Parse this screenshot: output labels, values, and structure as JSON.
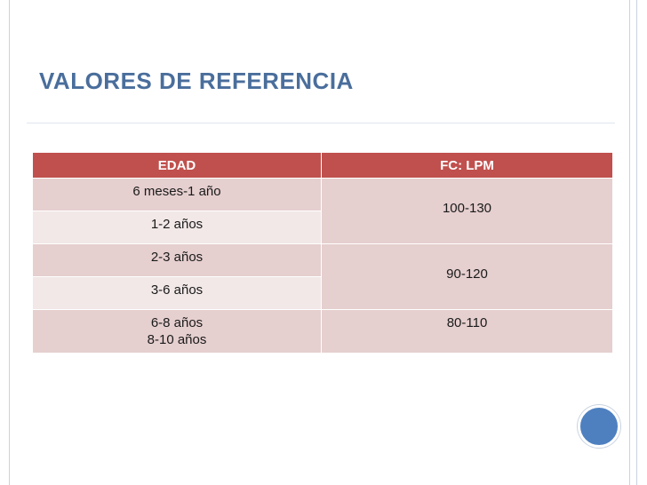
{
  "slide": {
    "title": "VALORES DE REFERENCIA"
  },
  "table": {
    "headers": {
      "age": "EDAD",
      "fc": "FC: LPM"
    },
    "groups": [
      {
        "ages": [
          "6 meses-1 año",
          "1-2 años"
        ],
        "fc": "100-130"
      },
      {
        "ages": [
          "2-3 años",
          "3-6 años"
        ],
        "fc": "90-120"
      },
      {
        "ages": [
          "6-8 años",
          "8-10 años"
        ],
        "fc": "80-110"
      }
    ]
  },
  "colors": {
    "header": "#c0504d",
    "row_dark": "#e6cfcf",
    "row_light": "#f2e8e8",
    "title": "#4a6e9c",
    "accent_circle": "#4e80c0"
  }
}
